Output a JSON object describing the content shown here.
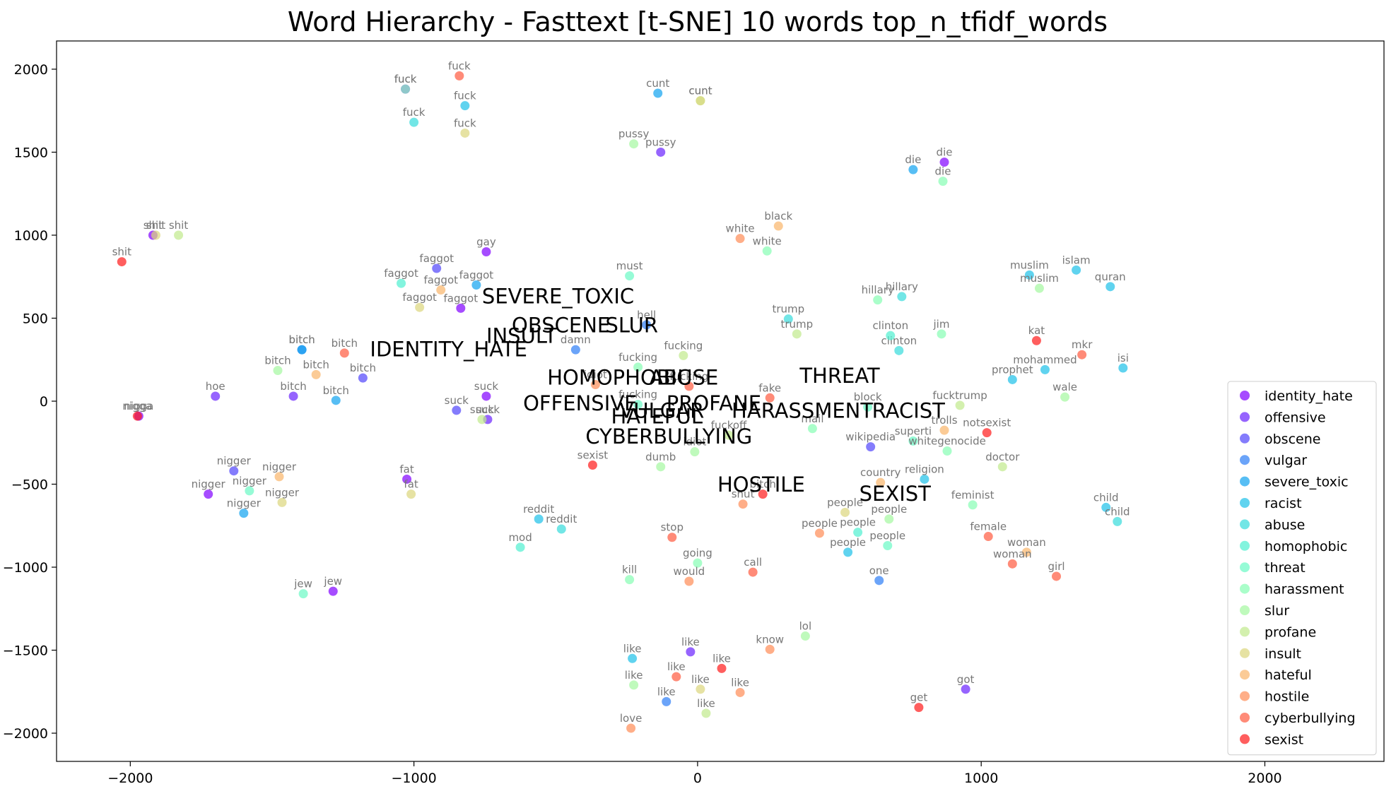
{
  "chart_data": {
    "type": "scatter",
    "title": "Word Hierarchy - Fasttext [t-SNE] 10 words top_n_tfidf_words",
    "xlabel": "",
    "ylabel": "",
    "xlim": [
      -2260,
      2420
    ],
    "ylim": [
      -2170,
      2170
    ],
    "x_ticks": [
      -2000,
      -1000,
      0,
      1000,
      2000
    ],
    "y_ticks": [
      -2000,
      -1500,
      -1000,
      -500,
      0,
      500,
      1000,
      1500,
      2000
    ],
    "x_tick_labels": [
      "−2000",
      "−1000",
      "0",
      "1000",
      "2000"
    ],
    "y_tick_labels": [
      "−2000",
      "−1500",
      "−1000",
      "−500",
      "0",
      "500",
      "1000",
      "1500",
      "2000"
    ],
    "grid": false,
    "legend_position": "lower right",
    "marker_alpha": 0.7,
    "series": [
      {
        "name": "identity_hate",
        "color": "#8000ff",
        "points": [
          {
            "x": -1030,
            "y": 1880,
            "label": "fuck"
          },
          {
            "x": -745,
            "y": 900,
            "label": "gay"
          },
          {
            "x": -835,
            "y": 560,
            "label": "faggot"
          },
          {
            "x": -745,
            "y": 30,
            "label": "suck"
          },
          {
            "x": -1970,
            "y": -90,
            "label": "nigga"
          },
          {
            "x": -1725,
            "y": -560,
            "label": "nigger"
          },
          {
            "x": -1025,
            "y": -470,
            "label": "fat"
          },
          {
            "x": -1285,
            "y": -1145,
            "label": "jew"
          },
          {
            "x": -1920,
            "y": 1000,
            "label": "shit"
          },
          {
            "x": 870,
            "y": 1440,
            "label": "die"
          }
        ]
      },
      {
        "name": "offensive",
        "color": "#6a22fe",
        "points": [
          {
            "x": -1700,
            "y": 30,
            "label": "hoe"
          },
          {
            "x": -1425,
            "y": 30,
            "label": "bitch"
          },
          {
            "x": -130,
            "y": 1500,
            "label": "pussy"
          },
          {
            "x": -740,
            "y": -110,
            "label": "suck"
          },
          {
            "x": 945,
            "y": -1735,
            "label": "got"
          },
          {
            "x": -25,
            "y": -1510,
            "label": "like"
          }
        ]
      },
      {
        "name": "obscene",
        "color": "#5044fb",
        "points": [
          {
            "x": -920,
            "y": 800,
            "label": "faggot"
          },
          {
            "x": -1180,
            "y": 140,
            "label": "bitch"
          },
          {
            "x": -850,
            "y": -55,
            "label": "suck"
          },
          {
            "x": -1635,
            "y": -420,
            "label": "nigger"
          },
          {
            "x": 610,
            "y": -275,
            "label": "wikipedia"
          }
        ]
      },
      {
        "name": "vulgar",
        "color": "#2c7ef7",
        "points": [
          {
            "x": -1395,
            "y": 310,
            "label": "bitch"
          },
          {
            "x": -430,
            "y": 310,
            "label": "damn"
          },
          {
            "x": -180,
            "y": 460,
            "label": "hell"
          },
          {
            "x": 640,
            "y": -1080,
            "label": "one"
          },
          {
            "x": -110,
            "y": -1810,
            "label": "like"
          }
        ]
      },
      {
        "name": "severe_toxic",
        "color": "#10a2f0",
        "points": [
          {
            "x": -1395,
            "y": 310,
            "label": "bitch"
          },
          {
            "x": -1275,
            "y": 5,
            "label": "bitch"
          },
          {
            "x": -780,
            "y": 700,
            "label": "faggot"
          },
          {
            "x": -140,
            "y": 1855,
            "label": "cunt"
          },
          {
            "x": 760,
            "y": 1395,
            "label": "die"
          },
          {
            "x": -1600,
            "y": -675,
            "label": "nigger"
          }
        ]
      },
      {
        "name": "racist",
        "color": "#1cc0e8",
        "points": [
          {
            "x": -820,
            "y": 1780,
            "label": "fuck"
          },
          {
            "x": 1170,
            "y": 760,
            "label": "muslim"
          },
          {
            "x": 1335,
            "y": 790,
            "label": "islam"
          },
          {
            "x": 1455,
            "y": 690,
            "label": "quran"
          },
          {
            "x": 1225,
            "y": 190,
            "label": "mohammed"
          },
          {
            "x": 1500,
            "y": 200,
            "label": "isi"
          },
          {
            "x": 1110,
            "y": 130,
            "label": "prophet"
          },
          {
            "x": 800,
            "y": -470,
            "label": "religion"
          },
          {
            "x": 1440,
            "y": -640,
            "label": "child"
          },
          {
            "x": 530,
            "y": -910,
            "label": "people"
          },
          {
            "x": -230,
            "y": -1550,
            "label": "like"
          },
          {
            "x": -560,
            "y": -710,
            "label": "reddit"
          }
        ]
      },
      {
        "name": "abuse",
        "color": "#36dbdc",
        "points": [
          {
            "x": -1000,
            "y": 1680,
            "label": "fuck"
          },
          {
            "x": 720,
            "y": 630,
            "label": "hillary"
          },
          {
            "x": 320,
            "y": 495,
            "label": "trump"
          },
          {
            "x": 710,
            "y": 305,
            "label": "clinton"
          },
          {
            "x": 1480,
            "y": -725,
            "label": "child"
          },
          {
            "x": -480,
            "y": -770,
            "label": "reddit"
          }
        ]
      },
      {
        "name": "homophobic",
        "color": "#4ef0d0",
        "points": [
          {
            "x": -1045,
            "y": 710,
            "label": "faggot"
          },
          {
            "x": -625,
            "y": -880,
            "label": "mod"
          },
          {
            "x": 565,
            "y": -790,
            "label": "people"
          },
          {
            "x": 680,
            "y": 395,
            "label": "clinton"
          }
        ]
      },
      {
        "name": "threat",
        "color": "#6afac4",
        "points": [
          {
            "x": -1390,
            "y": -1160,
            "label": "jew"
          },
          {
            "x": -1580,
            "y": -540,
            "label": "nigger"
          },
          {
            "x": -240,
            "y": 755,
            "label": "must"
          },
          {
            "x": 600,
            "y": -35,
            "label": "block"
          },
          {
            "x": 670,
            "y": -870,
            "label": "people"
          },
          {
            "x": -210,
            "y": -20,
            "label": "fucking"
          },
          {
            "x": 760,
            "y": -240,
            "label": "superti"
          }
        ]
      },
      {
        "name": "harassment",
        "color": "#86feb4",
        "points": [
          {
            "x": -1030,
            "y": 1880,
            "label": "fuck"
          },
          {
            "x": 245,
            "y": 905,
            "label": "white"
          },
          {
            "x": 865,
            "y": 1325,
            "label": "die"
          },
          {
            "x": 635,
            "y": 610,
            "label": "hillary"
          },
          {
            "x": 860,
            "y": 405,
            "label": "jim"
          },
          {
            "x": 0,
            "y": -975,
            "label": "going"
          },
          {
            "x": -240,
            "y": -1075,
            "label": "kill"
          },
          {
            "x": -210,
            "y": 205,
            "label": "fucking"
          },
          {
            "x": 405,
            "y": -165,
            "label": "mail"
          },
          {
            "x": 970,
            "y": -625,
            "label": "feminist"
          },
          {
            "x": 880,
            "y": -300,
            "label": "whitegenocide"
          }
        ]
      },
      {
        "name": "slur",
        "color": "#a4f89f",
        "points": [
          {
            "x": -1480,
            "y": 185,
            "label": "bitch"
          },
          {
            "x": -225,
            "y": 1550,
            "label": "pussy"
          },
          {
            "x": 1205,
            "y": 680,
            "label": "muslim"
          },
          {
            "x": 1295,
            "y": 25,
            "label": "wale"
          },
          {
            "x": -130,
            "y": -395,
            "label": "dumb"
          },
          {
            "x": -225,
            "y": -1710,
            "label": "like"
          },
          {
            "x": 380,
            "y": -1415,
            "label": "lol"
          },
          {
            "x": 675,
            "y": -710,
            "label": "people"
          },
          {
            "x": -10,
            "y": -305,
            "label": "idiot"
          }
        ]
      },
      {
        "name": "profane",
        "color": "#c0ea8c",
        "points": [
          {
            "x": -1830,
            "y": 1000,
            "label": "shit"
          },
          {
            "x": -760,
            "y": -110,
            "label": "suck"
          },
          {
            "x": -50,
            "y": 275,
            "label": "fucking"
          },
          {
            "x": 350,
            "y": 405,
            "label": "trump"
          },
          {
            "x": 110,
            "y": -205,
            "label": "fuckoff"
          },
          {
            "x": 925,
            "y": -25,
            "label": "fucktrump"
          },
          {
            "x": 1075,
            "y": -395,
            "label": "doctor"
          },
          {
            "x": 30,
            "y": -1880,
            "label": "like"
          },
          {
            "x": 10,
            "y": 1810,
            "label": "cunt"
          }
        ]
      },
      {
        "name": "insult",
        "color": "#dcd57c",
        "points": [
          {
            "x": -1910,
            "y": 1000,
            "label": "shit"
          },
          {
            "x": 10,
            "y": 1810,
            "label": "cunt"
          },
          {
            "x": -820,
            "y": 1615,
            "label": "fuck"
          },
          {
            "x": -980,
            "y": 565,
            "label": "faggot"
          },
          {
            "x": -1010,
            "y": -560,
            "label": "fat"
          },
          {
            "x": -1465,
            "y": -610,
            "label": "nigger"
          },
          {
            "x": 520,
            "y": -670,
            "label": "people"
          },
          {
            "x": 10,
            "y": -1735,
            "label": "like"
          }
        ]
      },
      {
        "name": "hateful",
        "color": "#fab56a",
        "points": [
          {
            "x": -1345,
            "y": 160,
            "label": "bitch"
          },
          {
            "x": -905,
            "y": 670,
            "label": "faggot"
          },
          {
            "x": -1475,
            "y": -455,
            "label": "nigger"
          },
          {
            "x": 285,
            "y": 1055,
            "label": "black"
          },
          {
            "x": 645,
            "y": -490,
            "label": "country"
          },
          {
            "x": 870,
            "y": -175,
            "label": "trolls"
          },
          {
            "x": 1160,
            "y": -910,
            "label": "woman"
          }
        ]
      },
      {
        "name": "hostile",
        "color": "#ff8c55",
        "points": [
          {
            "x": 150,
            "y": 980,
            "label": "white"
          },
          {
            "x": -360,
            "y": 100,
            "label": "idiot"
          },
          {
            "x": 430,
            "y": -795,
            "label": "people"
          },
          {
            "x": -235,
            "y": -1970,
            "label": "love"
          },
          {
            "x": 160,
            "y": -620,
            "label": "shut"
          },
          {
            "x": 150,
            "y": -1755,
            "label": "like"
          },
          {
            "x": -30,
            "y": -1085,
            "label": "would"
          },
          {
            "x": 255,
            "y": -1495,
            "label": "know"
          }
        ]
      },
      {
        "name": "cyberbullying",
        "color": "#ff5a3e",
        "points": [
          {
            "x": -840,
            "y": 1960,
            "label": "fuck"
          },
          {
            "x": -1245,
            "y": 290,
            "label": "bitch"
          },
          {
            "x": -90,
            "y": -820,
            "label": "stop"
          },
          {
            "x": 255,
            "y": 20,
            "label": "fake"
          },
          {
            "x": -30,
            "y": 90,
            "label": "fucking"
          },
          {
            "x": 195,
            "y": -1030,
            "label": "call"
          },
          {
            "x": -75,
            "y": -1660,
            "label": "like"
          },
          {
            "x": 1025,
            "y": -815,
            "label": "female"
          },
          {
            "x": 1355,
            "y": 280,
            "label": "mkr"
          },
          {
            "x": 1265,
            "y": -1055,
            "label": "girl"
          },
          {
            "x": 1110,
            "y": -980,
            "label": "woman"
          }
        ]
      },
      {
        "name": "sexist",
        "color": "#ff1a1a",
        "points": [
          {
            "x": -2030,
            "y": 840,
            "label": "shit"
          },
          {
            "x": -1975,
            "y": -90,
            "label": "nigga"
          },
          {
            "x": -370,
            "y": -385,
            "label": "sexist"
          },
          {
            "x": 230,
            "y": -560,
            "label": "bitch"
          },
          {
            "x": 1195,
            "y": 365,
            "label": "kat"
          },
          {
            "x": 1020,
            "y": -190,
            "label": "notsexist"
          },
          {
            "x": 85,
            "y": -1610,
            "label": "like"
          },
          {
            "x": 780,
            "y": -1845,
            "label": "get"
          }
        ]
      }
    ],
    "cluster_labels": [
      {
        "text": "SEVERE_TOXIC",
        "x": -760,
        "y": 590
      },
      {
        "text": "OBSCENE",
        "x": -655,
        "y": 415
      },
      {
        "text": "SLUR",
        "x": -325,
        "y": 415
      },
      {
        "text": "INSULT",
        "x": -745,
        "y": 350
      },
      {
        "text": "IDENTITY_HATE",
        "x": -1155,
        "y": 270
      },
      {
        "text": "HOMOPHOBIC",
        "x": -530,
        "y": 100
      },
      {
        "text": "ABUSE",
        "x": -170,
        "y": 100
      },
      {
        "text": "THREAT",
        "x": 360,
        "y": 110
      },
      {
        "text": "OFFENSIVE",
        "x": -615,
        "y": -55
      },
      {
        "text": "PROFANE",
        "x": -110,
        "y": -55
      },
      {
        "text": "VULGAR",
        "x": -275,
        "y": -100
      },
      {
        "text": "HARASSMENT",
        "x": 120,
        "y": -100
      },
      {
        "text": "HATEFUL",
        "x": -305,
        "y": -135
      },
      {
        "text": "RACIST",
        "x": 615,
        "y": -100
      },
      {
        "text": "CYBERBULLYING",
        "x": -395,
        "y": -255
      },
      {
        "text": "HOSTILE",
        "x": 70,
        "y": -545
      },
      {
        "text": "SEXIST",
        "x": 570,
        "y": -600
      }
    ]
  }
}
